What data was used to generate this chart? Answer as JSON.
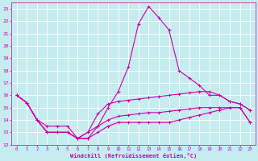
{
  "xlabel": "Windchill (Refroidissement éolien,°C)",
  "xlim": [
    -0.5,
    23.5
  ],
  "ylim": [
    12,
    23.5
  ],
  "xticks": [
    0,
    1,
    2,
    3,
    4,
    5,
    6,
    7,
    8,
    9,
    10,
    11,
    12,
    13,
    14,
    15,
    16,
    17,
    18,
    19,
    20,
    21,
    22,
    23
  ],
  "yticks": [
    12,
    13,
    14,
    15,
    16,
    17,
    18,
    19,
    20,
    21,
    22,
    23
  ],
  "bg_color": "#c5ecee",
  "grid_color": "#aad4d8",
  "line_color": "#cc00aa",
  "hours": [
    0,
    1,
    2,
    3,
    4,
    5,
    6,
    7,
    8,
    9,
    10,
    11,
    12,
    13,
    14,
    15,
    16,
    17,
    18,
    19,
    20,
    21,
    22,
    23
  ],
  "curve1": [
    16.0,
    15.4,
    14.0,
    13.0,
    13.0,
    13.0,
    12.5,
    13.0,
    13.5,
    15.0,
    16.3,
    18.3,
    21.8,
    23.2,
    22.3,
    21.3,
    18.0,
    17.4,
    16.8,
    16.0,
    16.0,
    15.5,
    15.3,
    14.8
  ],
  "curve2": [
    16.0,
    15.4,
    14.0,
    13.0,
    13.0,
    13.0,
    12.5,
    13.0,
    14.5,
    15.3,
    15.5,
    15.6,
    15.7,
    15.8,
    15.9,
    16.0,
    16.1,
    16.2,
    16.3,
    16.3,
    16.0,
    15.5,
    15.3,
    14.8
  ],
  "curve3": [
    16.0,
    15.4,
    14.0,
    13.5,
    13.5,
    13.5,
    12.5,
    12.5,
    13.5,
    14.0,
    14.3,
    14.4,
    14.5,
    14.6,
    14.6,
    14.7,
    14.8,
    14.9,
    15.0,
    15.0,
    15.0,
    15.0,
    15.0,
    13.8
  ],
  "curve4": [
    16.0,
    15.4,
    14.0,
    13.0,
    13.0,
    13.0,
    12.5,
    12.5,
    13.0,
    13.5,
    13.8,
    13.8,
    13.8,
    13.8,
    13.8,
    13.8,
    14.0,
    14.2,
    14.4,
    14.6,
    14.8,
    15.0,
    15.0,
    13.8
  ]
}
